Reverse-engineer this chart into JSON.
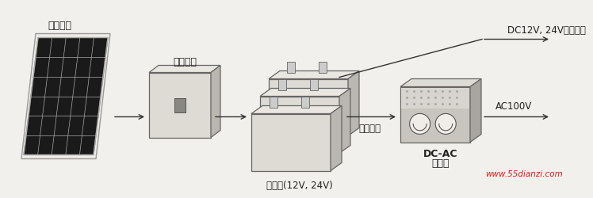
{
  "bg_color": "#f2f0ec",
  "watermark": "www.55dianzi.com",
  "watermark_color": "#cc2222",
  "solar_label": "太阳电池",
  "charger_label": "充电回路",
  "battery_label": "蓄电池(12V, 24V)",
  "converter_label1": "DC-AC",
  "converter_label2": "变换器",
  "label_dc": "DC12V, 24V直接利用",
  "label_ac": "AC100V",
  "label_power": "电力利用",
  "line_color": "#333333",
  "panel_dark": "#1a1a1a",
  "panel_grid": "#888888",
  "panel_frame": "#aaaaaa",
  "box_front": "#e0ddd8",
  "box_top": "#eeebe6",
  "box_right": "#c0bdb8",
  "box_edge": "#555555"
}
